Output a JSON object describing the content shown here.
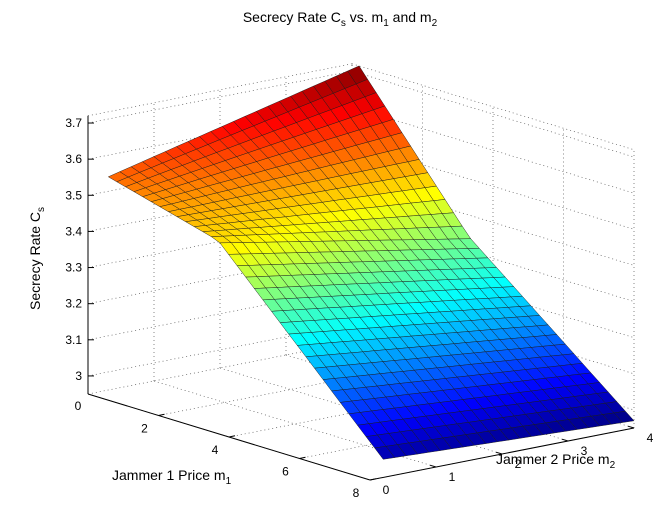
{
  "chart_data": {
    "type": "surface",
    "title": "Secrecy Rate C",
    "title_sub": "s",
    "title_tail": " vs. m",
    "title_sub2": "1",
    "title_tail2": " and m",
    "title_sub3": "2",
    "xlabel": "Jammer 1 Price m",
    "xlabel_sub": "1",
    "ylabel": "Jammer 2 Price m",
    "ylabel_sub": "2",
    "zlabel": "Secrecy Rate C",
    "zlabel_sub": "s",
    "xlim": [
      0,
      8
    ],
    "ylim": [
      0,
      4
    ],
    "zlim": [
      2.95,
      3.72
    ],
    "x_ticks": [
      "0",
      "2",
      "4",
      "6",
      "8"
    ],
    "y_ticks": [
      "0",
      "1",
      "2",
      "3",
      "4"
    ],
    "z_ticks": [
      "3",
      "3.1",
      "3.2",
      "3.3",
      "3.4",
      "3.5",
      "3.6",
      "3.7"
    ],
    "x_tick_values": [
      0,
      2,
      4,
      6,
      8
    ],
    "y_tick_values": [
      0,
      1,
      2,
      3,
      4
    ],
    "z_tick_values": [
      3.0,
      3.1,
      3.2,
      3.3,
      3.4,
      3.5,
      3.6,
      3.7
    ],
    "grid": true,
    "colormap": "jet",
    "corner_values": [
      {
        "m1": 0.2,
        "m2": 0.2,
        "Cs": 3.55
      },
      {
        "m1": 0.2,
        "m2": 4.0,
        "Cs": 3.72
      },
      {
        "m1": 8.0,
        "m2": 0.2,
        "Cs": 3.0
      },
      {
        "m1": 8.0,
        "m2": 4.0,
        "Cs": 2.97
      }
    ],
    "ridge_value": 3.34
  }
}
